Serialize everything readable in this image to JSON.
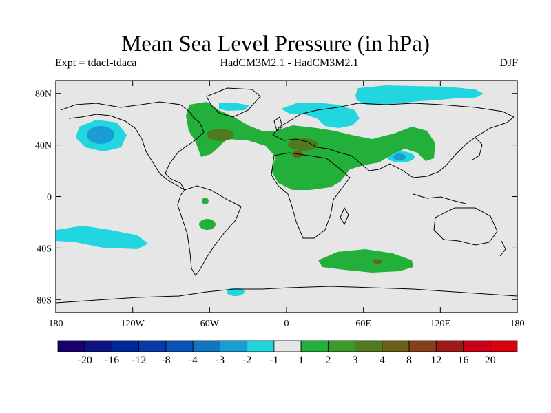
{
  "title": "Mean Sea Level Pressure (in hPa)",
  "subtitle_left": "Expt = tdacf-tdaca",
  "subtitle_center": "HadCM3M2.1 - HadCM3M2.1",
  "subtitle_right": "DJF",
  "axes": {
    "lat_labels": [
      "80N",
      "40N",
      "0",
      "40S",
      "80S"
    ],
    "lat_values": [
      80,
      40,
      0,
      -40,
      -80
    ],
    "lon_labels": [
      "180",
      "120W",
      "60W",
      "0",
      "60E",
      "120E",
      "180"
    ],
    "lon_values": [
      -180,
      -120,
      -60,
      0,
      60,
      120,
      180
    ],
    "lat_range": [
      -90,
      90
    ],
    "lon_range": [
      -180,
      180
    ]
  },
  "legend": {
    "labels": [
      "-20",
      "-16",
      "-12",
      "-8",
      "-4",
      "-3",
      "-2",
      "-1",
      "1",
      "2",
      "3",
      "4",
      "8",
      "12",
      "16",
      "20"
    ],
    "colors": [
      "#1a006e",
      "#0d1480",
      "#00279a",
      "#063aa6",
      "#0a52b8",
      "#1275c4",
      "#1a9cd4",
      "#22d6e0",
      "#e6e6e6",
      "#22b03a",
      "#3a9a2a",
      "#4f7a20",
      "#6a6018",
      "#864018",
      "#a01818",
      "#c8001a",
      "#d90010"
    ]
  },
  "colors": {
    "background": "#e6e6e6",
    "coast": "#000000"
  }
}
